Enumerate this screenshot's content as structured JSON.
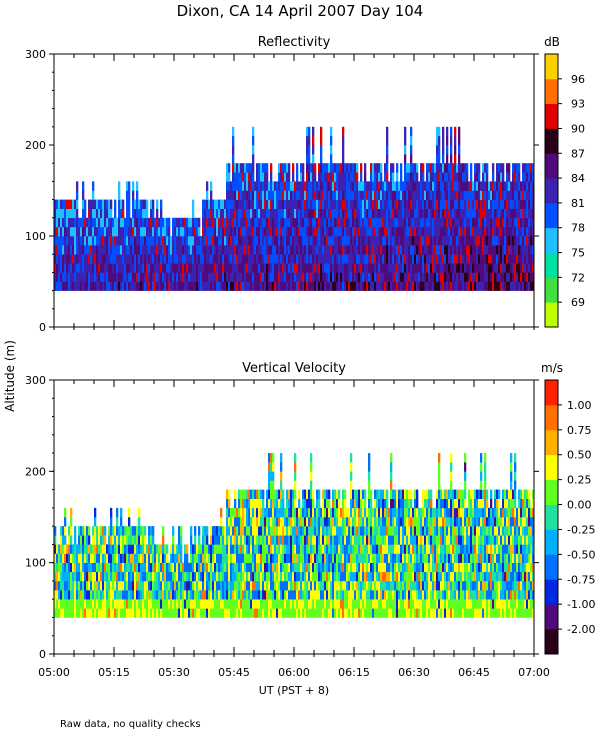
{
  "title": "Dixon, CA 14 April 2007  Day 104",
  "ylabel": "Altitude (m)",
  "xlabel": "UT  (PST + 8)",
  "footnote": "Raw data, no quality checks",
  "x_ticks": [
    "05:00",
    "05:15",
    "05:30",
    "05:45",
    "06:00",
    "06:15",
    "06:30",
    "06:45",
    "07:00"
  ],
  "chart_data": [
    {
      "type": "heatmap",
      "title": "Reflectivity",
      "colorbar_unit": "dB",
      "x": "time UT 05:00–07:00",
      "ylim": [
        0,
        300
      ],
      "y_ticks": [
        "0",
        "100",
        "200",
        "300"
      ],
      "colorbar_ticks": [
        "69",
        "72",
        "75",
        "78",
        "81",
        "84",
        "87",
        "90",
        "93",
        "96"
      ],
      "colorbar_colors": [
        "#c0ff00",
        "#40e040",
        "#00e0a0",
        "#20c0ff",
        "#0050ff",
        "#3c22b0",
        "#500a7a",
        "#2a0018",
        "#e00000",
        "#ff7000",
        "#ffd000"
      ],
      "data_extent": {
        "altitude_min_m": 40,
        "altitude_max_m": 220,
        "baseline_top_m": 140,
        "gap_top_m": 120,
        "gap_time": [
          "05:25",
          "05:37"
        ],
        "raised_top_m": 180,
        "raised_from": "05:43"
      }
    },
    {
      "type": "heatmap",
      "title": "Vertical Velocity",
      "colorbar_unit": "m/s",
      "x": "time UT 05:00–07:00",
      "ylim": [
        0,
        300
      ],
      "y_ticks": [
        "0",
        "100",
        "200",
        "300"
      ],
      "colorbar_ticks": [
        "1.00",
        "0.75",
        "0.50",
        "0.25",
        "0.00",
        "-0.25",
        "-0.50",
        "-0.75",
        "-1.00",
        "-2.00"
      ],
      "colorbar_colors": [
        "#2a0018",
        "#500a7a",
        "#0028e0",
        "#0070ff",
        "#00b0ff",
        "#20e0a0",
        "#60ff20",
        "#ffff00",
        "#ffb000",
        "#ff7000",
        "#ff2000"
      ],
      "data_extent": {
        "altitude_min_m": 40,
        "altitude_max_m": 220,
        "baseline_top_m": 140,
        "gap_top_m": 120,
        "gap_time": [
          "05:25",
          "05:37"
        ],
        "raised_top_m": 180,
        "raised_from": "05:43"
      }
    }
  ]
}
